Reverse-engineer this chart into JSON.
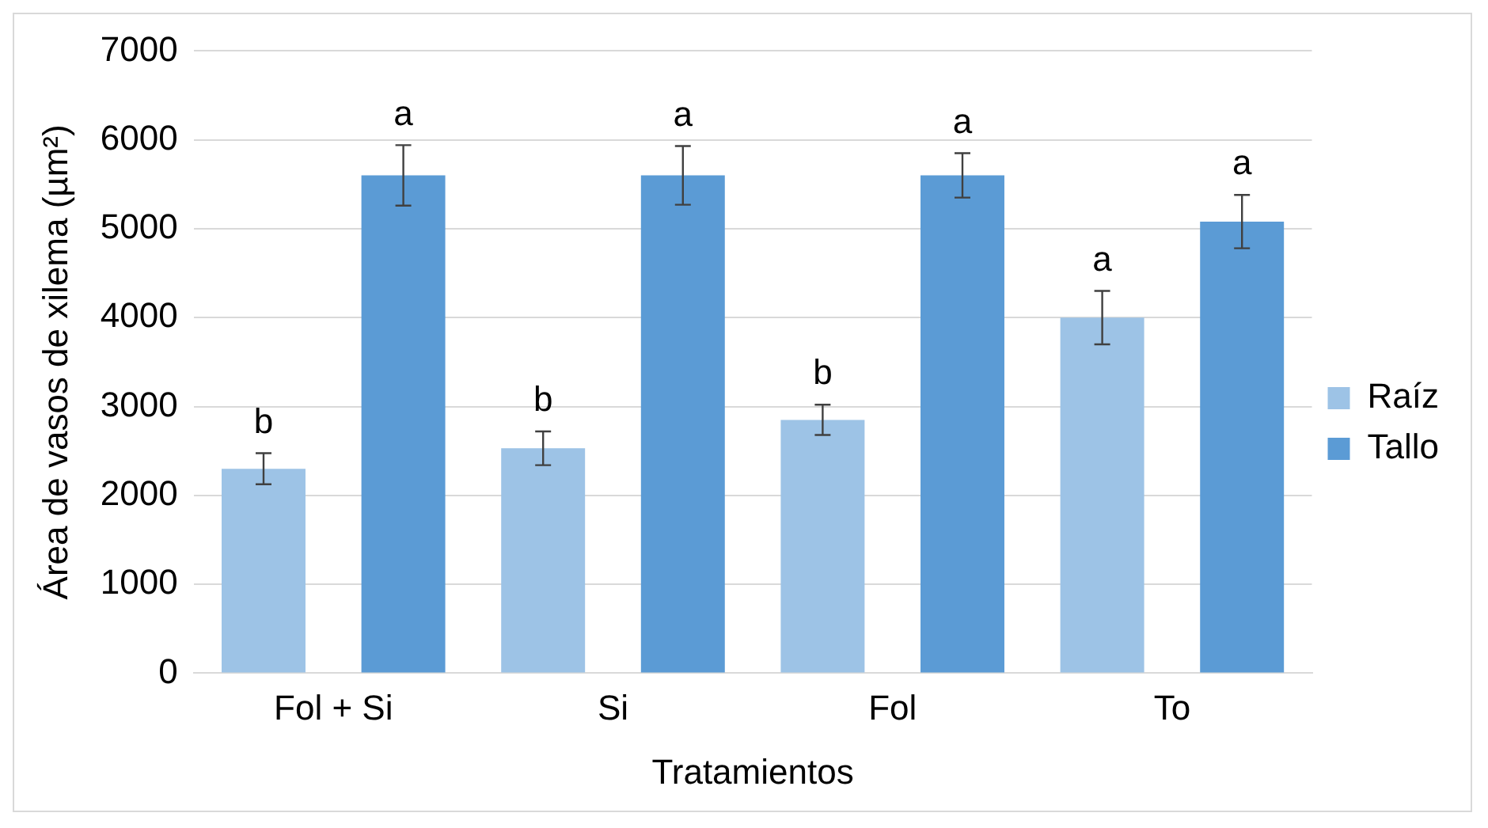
{
  "chart_data": {
    "type": "bar",
    "xlabel": "Tratamientos",
    "ylabel": "Área de vasos de xilema (µm²)",
    "categories": [
      "Fol + Si",
      "Si",
      "Fol",
      "To"
    ],
    "series": [
      {
        "name": "Raíz",
        "color": "#9dc3e6",
        "values": [
          2300,
          2530,
          2850,
          4000
        ],
        "errors": [
          175,
          190,
          170,
          300
        ],
        "value_labels": [
          "b",
          "b",
          "b",
          "a"
        ]
      },
      {
        "name": "Tallo",
        "color": "#5b9bd5",
        "values": [
          5600,
          5600,
          5600,
          5080
        ],
        "errors": [
          340,
          330,
          250,
          300
        ],
        "value_labels": [
          "a",
          "a",
          "a",
          "a"
        ]
      }
    ],
    "ylim": [
      0,
      7000
    ],
    "yticks": [
      0,
      1000,
      2000,
      3000,
      4000,
      5000,
      6000,
      7000
    ],
    "grid": "y",
    "legend": "right"
  }
}
